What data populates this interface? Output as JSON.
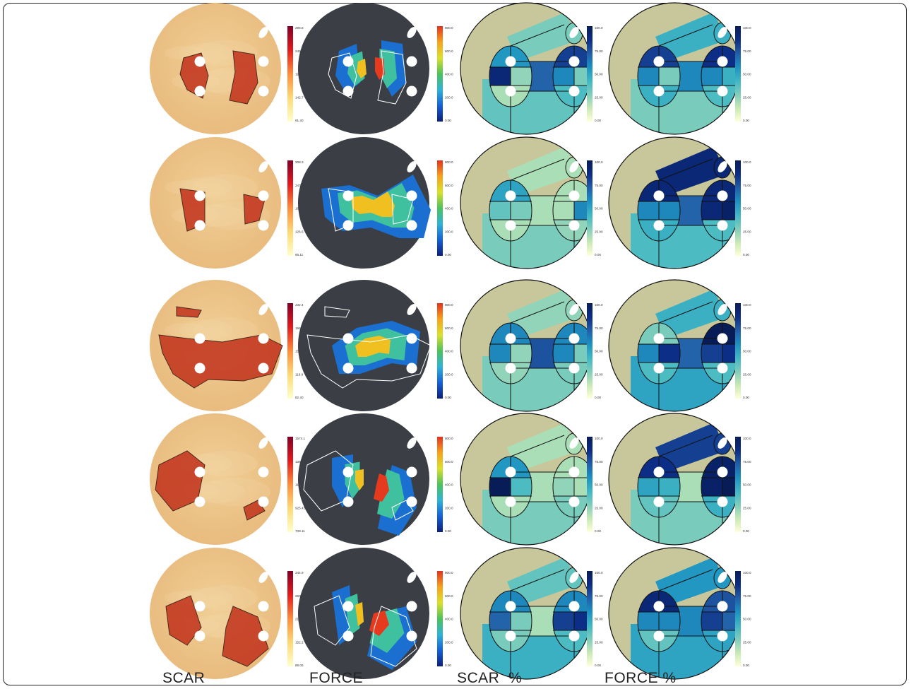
{
  "column_titles": [
    "SCAR",
    "FORCE",
    "SCAR  %",
    "FORCE %"
  ],
  "colors": {
    "scar_background": "#e8b97c",
    "scar_region": "#c43a22",
    "force_background": "#3b3f45",
    "percent_background": "#c8c79b",
    "marker": "#ffffff"
  },
  "colorbars": {
    "scar_scheme": "yellow-orange-red",
    "force_scheme": "jet",
    "percent_scheme": "yellow-green-blue",
    "force_ticks": [
      "800.0",
      "600.0",
      "400.0",
      "200.0",
      "0.00"
    ],
    "scar_percent_ticks": [
      "100.0",
      "75.00",
      "50.00",
      "25.00",
      "0.00"
    ],
    "force_percent_ticks": [
      "100.0",
      "75.00",
      "50.00",
      "25.00",
      "0.00"
    ]
  },
  "rows": [
    {
      "scar_ticks": [
        "296.8",
        "245.5",
        "194.1",
        "142.7",
        "91.40"
      ],
      "scar_percent_cells": [
        55,
        90,
        25,
        80,
        60,
        30,
        70,
        20,
        35,
        30,
        40
      ],
      "force_percent_cells": [
        80,
        60,
        30,
        85,
        60,
        45,
        60,
        45,
        30,
        45,
        40
      ]
    },
    {
      "scar_ticks": [
        "308.3",
        "247.8",
        "187.2",
        "126.6",
        "66.11"
      ],
      "scar_percent_cells": [
        50,
        35,
        30,
        20,
        20,
        60,
        20,
        20,
        30,
        20,
        25
      ],
      "force_percent_cells": [
        90,
        60,
        60,
        90,
        90,
        95,
        70,
        45,
        40,
        90,
        40
      ]
    },
    {
      "scar_ticks": [
        "232.4",
        "194.9",
        "157.4",
        "119.9",
        "82.40"
      ],
      "scar_percent_cells": [
        60,
        60,
        25,
        60,
        60,
        30,
        75,
        25,
        30,
        25,
        30
      ],
      "force_percent_cells": [
        30,
        60,
        85,
        100,
        80,
        85,
        70,
        40,
        50,
        45,
        40
      ]
    },
    {
      "scar_ticks": [
        "1574.1",
        "1358.4",
        "1141.7",
        "925.41",
        "709.11"
      ],
      "scar_percent_cells": [
        55,
        100,
        40,
        20,
        25,
        20,
        20,
        20,
        30,
        20,
        30
      ],
      "force_percent_cells": [
        85,
        50,
        45,
        95,
        95,
        100,
        20,
        35,
        30,
        80,
        45
      ]
    },
    {
      "scar_ticks": [
        "344.9",
        "280.7",
        "216.5",
        "152.2",
        "88.05"
      ],
      "scar_percent_cells": [
        60,
        70,
        30,
        60,
        80,
        85,
        20,
        30,
        45,
        35,
        40
      ],
      "force_percent_cells": [
        90,
        60,
        60,
        75,
        80,
        70,
        60,
        35,
        50,
        55,
        50
      ]
    }
  ]
}
